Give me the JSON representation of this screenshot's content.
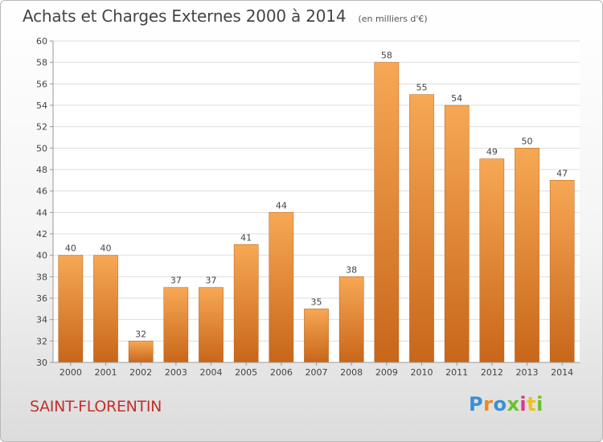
{
  "chart_data": {
    "type": "bar",
    "title": "Achats et Charges Externes 2000 à 2014",
    "subtitle": "(en milliers d'€)",
    "categories": [
      "2000",
      "2001",
      "2002",
      "2003",
      "2004",
      "2005",
      "2006",
      "2007",
      "2008",
      "2009",
      "2010",
      "2011",
      "2012",
      "2013",
      "2014"
    ],
    "values": [
      40,
      40,
      32,
      37,
      37,
      41,
      44,
      35,
      38,
      58,
      55,
      54,
      49,
      50,
      47
    ],
    "ylim": [
      30,
      60
    ],
    "yticks": [
      30,
      32,
      34,
      36,
      38,
      40,
      42,
      44,
      46,
      48,
      50,
      52,
      54,
      56,
      58,
      60
    ],
    "grid": true,
    "colors": {
      "bar_top": "#f7a854",
      "bar_bottom": "#c8661a",
      "grid": "#dddddd",
      "axis": "#999999"
    }
  },
  "footer": {
    "town": "SAINT-FLORENTIN",
    "logo_letters": [
      "P",
      "r",
      "o",
      "x",
      "i",
      "t",
      "i"
    ],
    "logo_colors": [
      "#3a8fd6",
      "#f08a1c",
      "#3a8fd6",
      "#6cbf2e",
      "#d63a8a",
      "#f0c01c",
      "#6cbf2e"
    ]
  }
}
